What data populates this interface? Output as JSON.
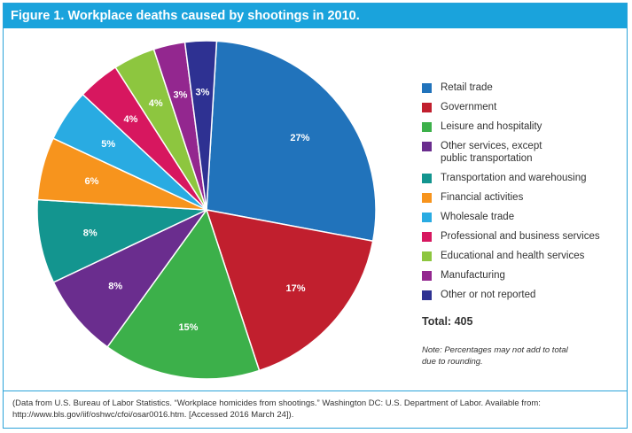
{
  "figure": {
    "title": "Figure 1. Workplace deaths caused by shootings in 2010.",
    "total_label": "Total: 405",
    "note": "Note: Percentages may not add to total due to rounding.",
    "source": "(Data from U.S. Bureau of Labor Statistics. “Workplace homicides from shootings.” Washington DC: U.S. Department of Labor. Available from: http://www.bls.gov/iif/oshwc/cfoi/osar0016.htm. [Accessed 2016 March 24])."
  },
  "chart_data": {
    "type": "pie",
    "title": "Figure 1. Workplace deaths caused by shootings in 2010.",
    "total": 405,
    "legend_position": "right",
    "slices": [
      {
        "label": "Retail trade",
        "value": 27,
        "display": "27%",
        "color": "#2173bb",
        "label_color": "#ffffff"
      },
      {
        "label": "Government",
        "value": 17,
        "display": "17%",
        "color": "#c11f2e",
        "label_color": "#ffffff"
      },
      {
        "label": "Leisure and hospitality",
        "value": 15,
        "display": "15%",
        "color": "#3cb04a",
        "label_color": "#ffffff"
      },
      {
        "label": "Other services, except public transportation",
        "value": 8,
        "display": "8%",
        "color": "#6a2d8e",
        "label_color": "#ffffff"
      },
      {
        "label": "Transportation and warehousing",
        "value": 8,
        "display": "8%",
        "color": "#13958f",
        "label_color": "#ffffff"
      },
      {
        "label": "Financial activities",
        "value": 6,
        "display": "6%",
        "color": "#f7941d",
        "label_color": "#ffffff"
      },
      {
        "label": "Wholesale trade",
        "value": 5,
        "display": "5%",
        "color": "#29abe2",
        "label_color": "#ffffff"
      },
      {
        "label": "Professional and business services",
        "value": 4,
        "display": "4%",
        "color": "#d7175f",
        "label_color": "#ffffff"
      },
      {
        "label": "Educational and health services",
        "value": 4,
        "display": "4%",
        "color": "#8dc63f",
        "label_color": "#ffffff"
      },
      {
        "label": "Manufacturing",
        "value": 3,
        "display": "3%",
        "color": "#93278f",
        "label_color": "#ffffff"
      },
      {
        "label": "Other or not reported",
        "value": 3,
        "display": "3%",
        "color": "#2e3192",
        "label_color": "#ffffff"
      }
    ]
  }
}
